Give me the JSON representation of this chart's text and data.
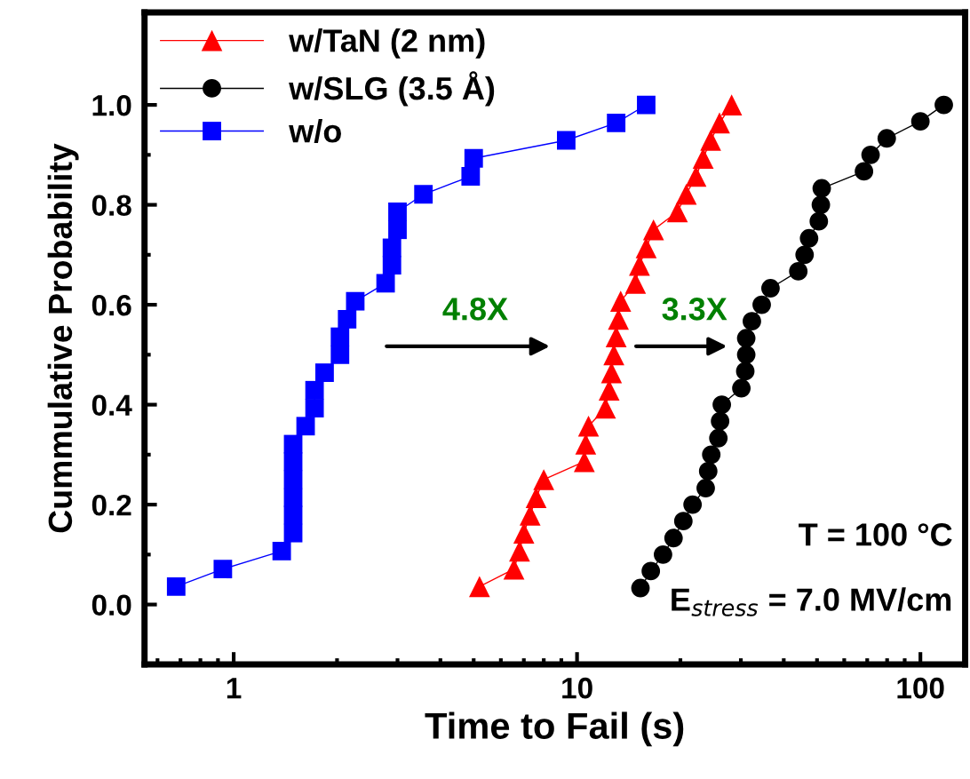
{
  "chart_data": {
    "type": "line",
    "xlabel": "Time to Fail (s)",
    "ylabel": "Cummulative Probability",
    "log": "x",
    "xlim": [
      0.55,
      135
    ],
    "xticks": [
      1,
      10,
      100
    ],
    "ylim": [
      -0.12,
      1.185
    ],
    "yticks": [
      {
        "value": 0,
        "label": "0.0"
      },
      0.2,
      0.4,
      0.6,
      0.8,
      {
        "value": 1,
        "label": "1.0"
      }
    ],
    "grid": false,
    "legend": "top left",
    "line_style": "solid",
    "series": [
      {
        "name": "w/TaN (2 nm)",
        "color": "#ff0000",
        "marker": "triangle",
        "x": [
          5.2,
          6.55,
          6.8,
          7.0,
          7.3,
          7.6,
          8.0,
          10.5,
          10.6,
          10.8,
          12.1,
          12.4,
          12.6,
          12.8,
          13.0,
          13.2,
          13.4,
          14.8,
          15.2,
          15.9,
          16.7,
          19.6,
          20.8,
          22.2,
          23.3,
          24.5,
          26.0,
          28.2
        ],
        "values": [
          0.036,
          0.071,
          0.107,
          0.143,
          0.179,
          0.214,
          0.25,
          0.286,
          0.321,
          0.357,
          0.393,
          0.429,
          0.464,
          0.5,
          0.536,
          0.571,
          0.607,
          0.643,
          0.679,
          0.714,
          0.75,
          0.786,
          0.821,
          0.857,
          0.893,
          0.929,
          0.964,
          1.0
        ]
      },
      {
        "name": "w/SLG (3.5 Å)",
        "color": "#000000",
        "marker": "circle",
        "x": [
          15.3,
          16.4,
          17.8,
          19.1,
          20.4,
          21.7,
          23.7,
          24.1,
          24.6,
          25.8,
          26.1,
          26.4,
          30.1,
          30.9,
          31.1,
          31.1,
          32.3,
          34.5,
          36.6,
          44.1,
          46,
          47.4,
          50.6,
          51.3,
          51.6,
          68.5,
          71.6,
          79.8,
          100,
          117
        ],
        "values": [
          0.033,
          0.067,
          0.1,
          0.133,
          0.167,
          0.2,
          0.233,
          0.267,
          0.3,
          0.333,
          0.367,
          0.4,
          0.433,
          0.467,
          0.5,
          0.533,
          0.567,
          0.6,
          0.633,
          0.667,
          0.7,
          0.733,
          0.767,
          0.8,
          0.833,
          0.867,
          0.9,
          0.933,
          0.967,
          1.0
        ]
      },
      {
        "name": "w/o",
        "color": "#0000ff",
        "marker": "square",
        "x": [
          0.68,
          0.93,
          1.38,
          1.49,
          1.49,
          1.49,
          1.49,
          1.49,
          1.49,
          1.62,
          1.72,
          1.72,
          1.84,
          2.04,
          2.04,
          2.14,
          2.26,
          2.77,
          2.89,
          2.89,
          3.0,
          3.0,
          3.57,
          4.9,
          5.0,
          9.3,
          13.0,
          15.9
        ],
        "values": [
          0.036,
          0.071,
          0.107,
          0.143,
          0.179,
          0.214,
          0.25,
          0.286,
          0.321,
          0.357,
          0.393,
          0.429,
          0.464,
          0.5,
          0.536,
          0.571,
          0.607,
          0.643,
          0.679,
          0.714,
          0.75,
          0.786,
          0.821,
          0.857,
          0.893,
          0.929,
          0.964,
          1.0
        ]
      }
    ],
    "annotations": [
      "4.8X",
      "3.3X",
      "T = 100 °C",
      "E$_{stress}$ = 7.0 MV/cm"
    ]
  }
}
